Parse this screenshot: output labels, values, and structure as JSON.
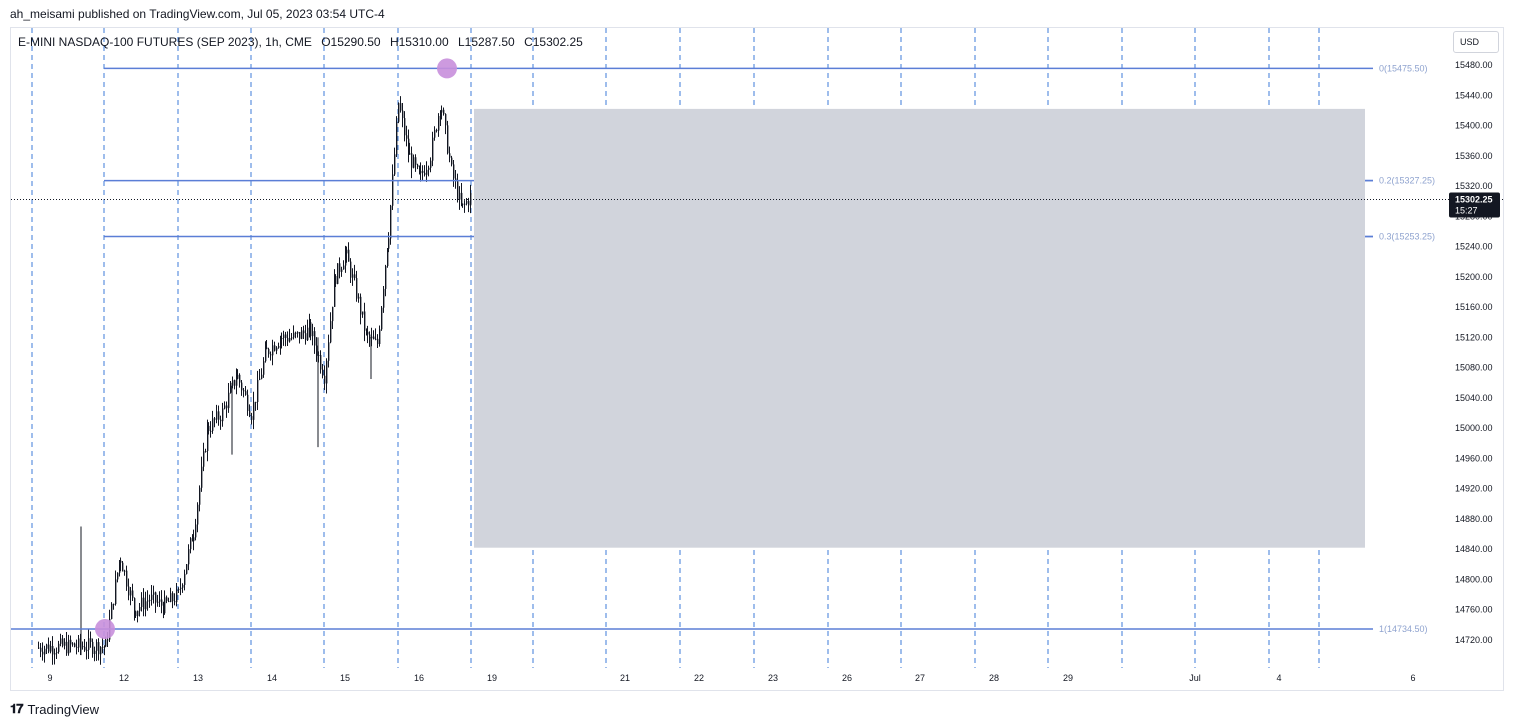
{
  "header": {
    "published_line": "ah_meisami published on TradingView.com, Jul 05, 2023 03:54 UTC-4"
  },
  "legend": {
    "symbol": "E-MINI NASDAQ-100 FUTURES (SEP 2023), 1h, CME",
    "open": "O15290.50",
    "high": "H15310.00",
    "low": "L15287.50",
    "close": "C15302.25"
  },
  "currency_button": "USD",
  "footer": {
    "brand": "TradingView"
  },
  "colors": {
    "fib_line": "#5b7ed6",
    "fib_label": "#8fa3cf",
    "grid_dashed": "#3d7bd9",
    "marker": "#c88fdc",
    "rect_fill": "#d1d4dc",
    "candle": "#131722"
  },
  "chart_data": {
    "type": "candlestick",
    "title": "E-MINI NASDAQ-100 FUTURES (SEP 2023), 1h, CME",
    "y_axis": {
      "ticks": [
        "15480.00",
        "15440.00",
        "15400.00",
        "15360.00",
        "15320.00",
        "15280.00",
        "15240.00",
        "15200.00",
        "15160.00",
        "15120.00",
        "15080.00",
        "15040.00",
        "15000.00",
        "14960.00",
        "14920.00",
        "14880.00",
        "14840.00",
        "14800.00",
        "14760.00",
        "14720.00"
      ],
      "range": [
        14695,
        15545
      ]
    },
    "x_axis": {
      "ticks": [
        "9",
        "12",
        "13",
        "14",
        "15",
        "16",
        "19",
        "21",
        "22",
        "23",
        "26",
        "27",
        "28",
        "29",
        "Jul",
        "4",
        "6"
      ]
    },
    "current_price": {
      "value": 15302.25,
      "label": "15302.25",
      "countdown": "15:27"
    },
    "fib_levels": [
      {
        "level": "0",
        "price": 15475.5,
        "label": "0(15475.50)"
      },
      {
        "level": "0.2",
        "price": 15327.25,
        "label": "0.2(15327.25)"
      },
      {
        "level": "0.3",
        "price": 15253.25,
        "label": "0.3(15253.25)"
      },
      {
        "level": "1",
        "price": 14734.5,
        "label": "1(14734.50)"
      }
    ],
    "markers": [
      {
        "date": "Jun 16",
        "price": 15475.5
      },
      {
        "date": "Jun 12",
        "price": 14734.5
      }
    ],
    "highlight_zone": {
      "top": 15422,
      "bottom": 14842
    },
    "price_path": [
      [
        "Jun 9",
        14710
      ],
      [
        "Jun 9",
        14712
      ],
      [
        "Jun 12",
        14712
      ],
      [
        "Jun 12",
        14830
      ],
      [
        "Jun 12",
        14760
      ],
      [
        "Jun 12",
        14775
      ],
      [
        "Jun 12",
        14765
      ],
      [
        "Jun 13",
        14780
      ],
      [
        "Jun 13",
        14860
      ],
      [
        "Jun 13",
        15000
      ],
      [
        "Jun 13",
        15020
      ],
      [
        "Jun 13",
        15070
      ],
      [
        "Jun 14",
        15020
      ],
      [
        "Jun 14",
        15100
      ],
      [
        "Jun 14",
        15120
      ],
      [
        "Jun 14",
        15120
      ],
      [
        "Jun 14",
        15130
      ],
      [
        "Jun 15",
        15070
      ],
      [
        "Jun 15",
        15200
      ],
      [
        "Jun 15",
        15230
      ],
      [
        "Jun 15",
        15180
      ],
      [
        "Jun 15",
        15120
      ],
      [
        "Jun 15",
        15110
      ],
      [
        "Jun 15",
        15250
      ],
      [
        "Jun 16",
        15430
      ],
      [
        "Jun 16",
        15360
      ],
      [
        "Jun 16",
        15330
      ],
      [
        "Jun 16",
        15360
      ],
      [
        "Jun 16",
        15430
      ],
      [
        "Jun 16",
        15340
      ],
      [
        "Jun 16",
        15290
      ],
      [
        "Jun 19",
        15310
      ]
    ]
  }
}
